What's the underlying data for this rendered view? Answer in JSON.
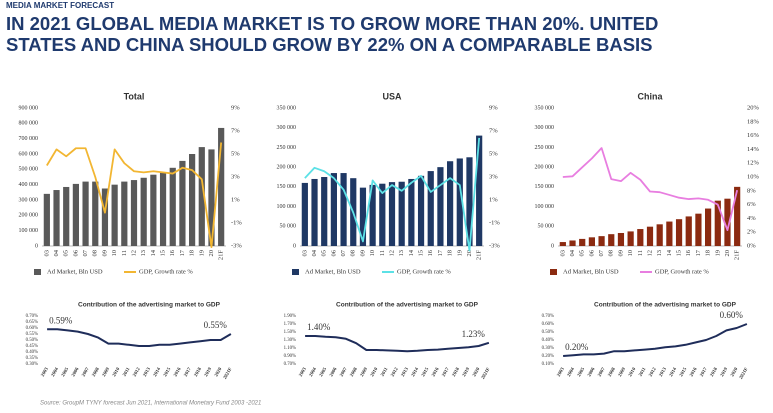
{
  "header": {
    "kicker": "MEDIA MARKET FORECAST",
    "title": [
      "IN 2021 GLOBAL MEDIA MARKET IS TO GROW MORE THAN 20%. UNITED",
      "STATES AND CHINA SHOULD GROW BY 22% ON A COMPARABLE BASIS"
    ]
  },
  "source": "Source: GroupM TYNY forecast Jun 2021, International Monetary Fund 2003 -2021",
  "chart_data": [
    {
      "type": "bar",
      "title": "Total",
      "categories": [
        "03",
        "04",
        "05",
        "06",
        "07",
        "08",
        "09",
        "10",
        "11",
        "12",
        "13",
        "14",
        "15",
        "16",
        "17",
        "18",
        "19",
        "20",
        "21F"
      ],
      "series": [
        {
          "name": "Ad Market, Bln USD",
          "color": "#595959",
          "values": [
            340000,
            365000,
            385000,
            405000,
            420000,
            420000,
            375000,
            400000,
            420000,
            430000,
            445000,
            465000,
            480000,
            510000,
            555000,
            600000,
            645000,
            630000,
            770000
          ]
        },
        {
          "name": "GDP, Growth rate %",
          "type": "line",
          "axis": "y2",
          "color": "#f2b632",
          "values": [
            4,
            5.4,
            4.8,
            5.5,
            5.5,
            3,
            -0.1,
            5.4,
            4.2,
            3.5,
            3.4,
            3.5,
            3.4,
            3.3,
            3.8,
            3.6,
            2.8,
            -3.1,
            6
          ]
        }
      ],
      "ylim": [
        0,
        900000
      ],
      "yticks": [
        0,
        {
          "value": 100000,
          "label": "100 000"
        },
        {
          "value": 200000,
          "label": "200 000"
        },
        {
          "value": 300000,
          "label": "300 000"
        },
        {
          "value": 400000,
          "label": "400 000"
        },
        {
          "value": 500000,
          "label": "500 000"
        },
        {
          "value": 600000,
          "label": "600 000"
        },
        {
          "value": 700000,
          "label": "700 000"
        },
        {
          "value": 800000,
          "label": "800 000"
        },
        {
          "value": 900000,
          "label": "900 000"
        }
      ],
      "y2lim": [
        -3,
        9
      ],
      "y2ticks": [
        {
          "value": -3,
          "label": "-3%"
        },
        {
          "value": -1,
          "label": "-1%"
        },
        {
          "value": 1,
          "label": "1%"
        },
        {
          "value": 3,
          "label": "3%"
        },
        {
          "value": 5,
          "label": "5%"
        },
        {
          "value": 7,
          "label": "7%"
        },
        {
          "value": 9,
          "label": "9%"
        }
      ]
    },
    {
      "type": "bar",
      "title": "USA",
      "categories": [
        "03",
        "04",
        "05",
        "06",
        "07",
        "08",
        "09",
        "10",
        "11",
        "12",
        "13",
        "14",
        "15",
        "16",
        "17",
        "18",
        "19",
        "20",
        "21F"
      ],
      "series": [
        {
          "name": "Ad Market, Bln USD",
          "color": "#1f3864",
          "values": [
            160000,
            170000,
            175000,
            185000,
            185000,
            172000,
            148000,
            155000,
            158000,
            162000,
            163000,
            170000,
            178000,
            190000,
            200000,
            215000,
            222000,
            225000,
            280000
          ]
        },
        {
          "name": "GDP, Growth rate %",
          "type": "line",
          "axis": "y2",
          "color": "#5ce1e6",
          "values": [
            2.9,
            3.8,
            3.5,
            2.9,
            1.9,
            -0.1,
            -2.6,
            2.7,
            1.6,
            2.3,
            1.8,
            2.5,
            3.1,
            1.7,
            2.3,
            2.9,
            2.3,
            -3.4,
            6.4
          ]
        }
      ],
      "ylim": [
        0,
        350000
      ],
      "yticks": [
        0,
        {
          "value": 50000,
          "label": "50 000"
        },
        {
          "value": 100000,
          "label": "100 000"
        },
        {
          "value": 150000,
          "label": "150 000"
        },
        {
          "value": 200000,
          "label": "200 000"
        },
        {
          "value": 250000,
          "label": "250 000"
        },
        {
          "value": 300000,
          "label": "300 000"
        },
        {
          "value": 350000,
          "label": "350 000"
        }
      ],
      "y2lim": [
        -3,
        9
      ],
      "y2ticks": [
        {
          "value": -3,
          "label": "-3%"
        },
        {
          "value": -1,
          "label": "-1%"
        },
        {
          "value": 1,
          "label": "1%"
        },
        {
          "value": 3,
          "label": "3%"
        },
        {
          "value": 5,
          "label": "5%"
        },
        {
          "value": 7,
          "label": "7%"
        },
        {
          "value": 9,
          "label": "9%"
        }
      ]
    },
    {
      "type": "bar",
      "title": "China",
      "categories": [
        "03",
        "04",
        "05",
        "06",
        "07",
        "08",
        "09",
        "10",
        "11",
        "12",
        "13",
        "14",
        "15",
        "16",
        "17",
        "18",
        "19",
        "20",
        "21F"
      ],
      "series": [
        {
          "name": "Ad Market, Bln USD",
          "color": "#8b2a10",
          "values": [
            10000,
            14000,
            18000,
            22000,
            25000,
            30000,
            33000,
            37000,
            43000,
            49000,
            55000,
            62000,
            68000,
            75000,
            82000,
            95000,
            115000,
            120000,
            150000
          ]
        },
        {
          "name": "GDP, Growth rate %",
          "type": "line",
          "axis": "y2",
          "color": "#e87ee0",
          "values": [
            10,
            10.1,
            11.4,
            12.7,
            14.2,
            9.7,
            9.4,
            10.6,
            9.6,
            7.9,
            7.8,
            7.4,
            7,
            6.8,
            6.9,
            6.7,
            6,
            2.3,
            8.1
          ]
        }
      ],
      "ylim": [
        0,
        350000
      ],
      "yticks": [
        0,
        {
          "value": 50000,
          "label": "50 000"
        },
        {
          "value": 100000,
          "label": "100 000"
        },
        {
          "value": 150000,
          "label": "150 000"
        },
        {
          "value": 200000,
          "label": "200 000"
        },
        {
          "value": 250000,
          "label": "250 000"
        },
        {
          "value": 300000,
          "label": "300 000"
        },
        {
          "value": 350000,
          "label": "350 000"
        }
      ],
      "y2lim": [
        0,
        20
      ],
      "y2ticks": [
        {
          "value": 0,
          "label": "0%"
        },
        {
          "value": 2,
          "label": "2%"
        },
        {
          "value": 4,
          "label": "4%"
        },
        {
          "value": 6,
          "label": "6%"
        },
        {
          "value": 8,
          "label": "8%"
        },
        {
          "value": 10,
          "label": "10%"
        },
        {
          "value": 12,
          "label": "12%"
        },
        {
          "value": 14,
          "label": "14%"
        },
        {
          "value": 16,
          "label": "16%"
        },
        {
          "value": 18,
          "label": "18%"
        },
        {
          "value": 20,
          "label": "20%"
        }
      ]
    },
    {
      "type": "line",
      "title": "Contribution of the advertising market to GDP",
      "color": "#1f2d5a",
      "categories": [
        "2003",
        "2004",
        "2005",
        "2006",
        "2007",
        "2008",
        "2009",
        "2010",
        "2011",
        "2012",
        "2013",
        "2014",
        "2015",
        "2016",
        "2017",
        "2018",
        "2019",
        "2020",
        "2021F"
      ],
      "values": [
        0.59,
        0.59,
        0.58,
        0.57,
        0.55,
        0.52,
        0.47,
        0.47,
        0.46,
        0.45,
        0.45,
        0.46,
        0.46,
        0.47,
        0.48,
        0.49,
        0.5,
        0.5,
        0.55
      ],
      "value_labels": [
        "0.59%",
        null,
        null,
        null,
        null,
        null,
        null,
        null,
        null,
        null,
        null,
        null,
        null,
        null,
        null,
        null,
        null,
        null,
        "0.55%"
      ],
      "ylim": [
        0.3,
        0.7
      ],
      "yticks": [
        {
          "value": 0.3,
          "label": "0.30%"
        },
        {
          "value": 0.35,
          "label": "0.35%"
        },
        {
          "value": 0.4,
          "label": "0.40%"
        },
        {
          "value": 0.45,
          "label": "0.45%"
        },
        {
          "value": 0.5,
          "label": "0.50%"
        },
        {
          "value": 0.55,
          "label": "0.55%"
        },
        {
          "value": 0.6,
          "label": "0.60%"
        },
        {
          "value": 0.65,
          "label": "0.65%"
        },
        {
          "value": 0.7,
          "label": "0.70%"
        }
      ]
    },
    {
      "type": "line",
      "title": "Contribution of the advertising market to GDP",
      "color": "#1f2d5a",
      "categories": [
        "2003",
        "2004",
        "2005",
        "2006",
        "2007",
        "2008",
        "2009",
        "2010",
        "2011",
        "2012",
        "2013",
        "2014",
        "2015",
        "2016",
        "2017",
        "2018",
        "2019",
        "2020",
        "2021F"
      ],
      "values": [
        1.4,
        1.4,
        1.38,
        1.37,
        1.33,
        1.22,
        1.05,
        1.05,
        1.04,
        1.03,
        1.02,
        1.03,
        1.05,
        1.06,
        1.08,
        1.1,
        1.12,
        1.15,
        1.23
      ],
      "value_labels": [
        "1.40%",
        null,
        null,
        null,
        null,
        null,
        null,
        null,
        null,
        null,
        null,
        null,
        null,
        null,
        null,
        null,
        null,
        null,
        "1.23%"
      ],
      "ylim": [
        0.7,
        1.9
      ],
      "yticks": [
        {
          "value": 0.7,
          "label": "0.70%"
        },
        {
          "value": 0.9,
          "label": "0.90%"
        },
        {
          "value": 1.1,
          "label": "1.10%"
        },
        {
          "value": 1.3,
          "label": "1.30%"
        },
        {
          "value": 1.5,
          "label": "1.50%"
        },
        {
          "value": 1.7,
          "label": "1.70%"
        },
        {
          "value": 1.9,
          "label": "1.90%"
        }
      ]
    },
    {
      "type": "line",
      "title": "Contribution of the advertising market to GDP",
      "color": "#1f2d5a",
      "categories": [
        "2003",
        "2004",
        "2005",
        "2006",
        "2007",
        "2008",
        "2009",
        "2010",
        "2011",
        "2012",
        "2013",
        "2014",
        "2015",
        "2016",
        "2017",
        "2018",
        "2019",
        "2020",
        "2021F"
      ],
      "values": [
        0.2,
        0.21,
        0.22,
        0.22,
        0.23,
        0.26,
        0.26,
        0.27,
        0.28,
        0.29,
        0.31,
        0.32,
        0.34,
        0.37,
        0.4,
        0.45,
        0.52,
        0.55,
        0.6
      ],
      "value_labels": [
        "0.20%",
        null,
        null,
        null,
        null,
        null,
        null,
        null,
        null,
        null,
        null,
        null,
        null,
        null,
        null,
        null,
        null,
        null,
        "0.60%"
      ],
      "ylim": [
        0.1,
        0.7
      ],
      "yticks": [
        {
          "value": 0.1,
          "label": "0.10%"
        },
        {
          "value": 0.2,
          "label": "0.20%"
        },
        {
          "value": 0.3,
          "label": "0.30%"
        },
        {
          "value": 0.4,
          "label": "0.40%"
        },
        {
          "value": 0.5,
          "label": "0.50%"
        },
        {
          "value": 0.6,
          "label": "0.60%"
        },
        {
          "value": 0.7,
          "label": "0.70%"
        }
      ]
    }
  ]
}
